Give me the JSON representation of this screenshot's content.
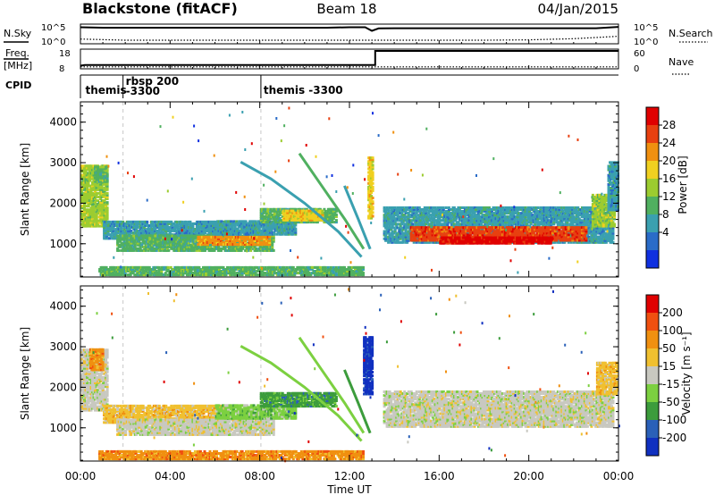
{
  "header": {
    "station": "Blackstone (fitACF)",
    "beam": "Beam 18",
    "date": "04/Jan/2015"
  },
  "chart_data": [
    {
      "type": "line",
      "panel": "noise",
      "left_label": "N.Sky",
      "right_label": "N.Search",
      "left_ticks": [
        "10^5",
        "10^0"
      ],
      "right_ticks": [
        "10^5",
        "10^0"
      ],
      "series": [
        {
          "name": "N.Sky",
          "x": [
            0,
            1,
            2,
            3,
            4,
            5,
            6,
            7,
            8,
            9,
            10,
            11,
            12,
            12.7,
            13.0,
            13.3,
            14,
            15,
            16,
            17,
            18,
            19,
            20,
            21,
            22,
            23,
            24
          ],
          "values": [
            4.2,
            4.1,
            4.1,
            4.1,
            4.1,
            4.1,
            4.1,
            4.1,
            4.1,
            4.1,
            4.1,
            4.1,
            4.2,
            4.2,
            3.3,
            3.9,
            3.95,
            3.95,
            3.95,
            3.95,
            3.95,
            3.95,
            3.95,
            3.95,
            3.95,
            3.95,
            4.3
          ]
        },
        {
          "name": "N.Search",
          "x": [
            0,
            2,
            4,
            6,
            8,
            10,
            12,
            13,
            14,
            16,
            18,
            20,
            22,
            24
          ],
          "values": [
            1.2,
            0.9,
            0.9,
            0.9,
            0.9,
            0.9,
            0.9,
            0.9,
            0.9,
            0.9,
            0.9,
            1.0,
            1.3,
            1.9
          ]
        }
      ]
    },
    {
      "type": "line",
      "panel": "frequency",
      "left_label_top": "Freq.",
      "left_label_bottom": "[MHz]",
      "right_label": "Nave",
      "left_ticks": [
        "18",
        "8"
      ],
      "right_ticks": [
        "60",
        "0"
      ],
      "series": [
        {
          "name": "Freq.",
          "x": [
            0,
            0.2,
            13.15,
            13.15,
            24
          ],
          "values": [
            10.5,
            10.8,
            10.8,
            18,
            18
          ]
        },
        {
          "name": "Nave",
          "x": [
            0,
            24
          ],
          "values": [
            6,
            6
          ]
        }
      ]
    },
    {
      "type": "table",
      "panel": "cpid",
      "label": "CPID",
      "segments": [
        {
          "start": 0.1,
          "line1": "themis",
          "line2": ""
        },
        {
          "start": 1.9,
          "line1": "rbsp 200",
          "line2": "-3300"
        },
        {
          "start": 8.05,
          "line1": "themis  -3300",
          "line2": ""
        }
      ]
    },
    {
      "type": "heatmap",
      "panel": "power",
      "ylabel": "Slant Range [km]",
      "yticks": [
        1000,
        2000,
        3000,
        4000
      ],
      "ylim": [
        180,
        4500
      ],
      "xlim": [
        0,
        24
      ],
      "colorbar": {
        "label": "Power [dB]",
        "ticks": [
          "28",
          "24",
          "20",
          "16",
          "12",
          "8",
          "4"
        ],
        "colors": [
          "#1030e0",
          "#2a6cc8",
          "#3aa0b0",
          "#50b060",
          "#9ccc30",
          "#f0d020",
          "#f09010",
          "#e84010",
          "#e00000"
        ]
      },
      "regions": [
        {
          "x0": 0.0,
          "x1": 1.2,
          "y0": 1400,
          "y1": 2900,
          "level": 4
        },
        {
          "x0": 0.6,
          "x1": 1.2,
          "y0": 2500,
          "y1": 2900,
          "level": 3
        },
        {
          "x0": 0.8,
          "x1": 12.6,
          "y0": 200,
          "y1": 420,
          "level": 3
        },
        {
          "x0": 1.0,
          "x1": 6.5,
          "y0": 1100,
          "y1": 1550,
          "level": 2
        },
        {
          "x0": 1.6,
          "x1": 8.6,
          "y0": 800,
          "y1": 1200,
          "level": 3
        },
        {
          "x0": 5.2,
          "x1": 8.4,
          "y0": 950,
          "y1": 1150,
          "level": 6
        },
        {
          "x0": 6.0,
          "x1": 9.6,
          "y0": 1200,
          "y1": 1550,
          "level": 2
        },
        {
          "x0": 8.0,
          "x1": 11.4,
          "y0": 1500,
          "y1": 1850,
          "level": 3
        },
        {
          "x0": 9.0,
          "x1": 10.8,
          "y0": 1550,
          "y1": 1780,
          "level": 5
        },
        {
          "x0": 12.8,
          "x1": 13.0,
          "y0": 1600,
          "y1": 3100,
          "level": 5
        },
        {
          "x0": 13.5,
          "x1": 23.7,
          "y0": 1000,
          "y1": 1900,
          "level": 2
        },
        {
          "x0": 14.7,
          "x1": 22.5,
          "y0": 1050,
          "y1": 1400,
          "level": 7
        },
        {
          "x0": 16.0,
          "x1": 21.0,
          "y0": 980,
          "y1": 1150,
          "level": 8
        },
        {
          "x0": 22.8,
          "x1": 23.8,
          "y0": 1400,
          "y1": 2200,
          "level": 4
        },
        {
          "x0": 23.5,
          "x1": 23.95,
          "y0": 1800,
          "y1": 3000,
          "level": 2
        }
      ],
      "streaks": [
        {
          "x": [
            7.2,
            8.5,
            10.0,
            11.5,
            12.5
          ],
          "y": [
            3000,
            2600,
            2000,
            1300,
            700
          ],
          "level": 2
        },
        {
          "x": [
            9.8,
            10.8,
            11.8,
            12.6
          ],
          "y": [
            3200,
            2400,
            1600,
            900
          ],
          "level": 3
        },
        {
          "x": [
            11.8,
            12.4,
            12.9
          ],
          "y": [
            2400,
            1600,
            900
          ],
          "level": 2
        }
      ]
    },
    {
      "type": "heatmap",
      "panel": "velocity",
      "ylabel": "Slant Range [km]",
      "yticks": [
        1000,
        2000,
        3000,
        4000
      ],
      "ylim": [
        180,
        4500
      ],
      "xlim": [
        0,
        24
      ],
      "xlabel": "Time UT",
      "xticks": [
        "00:00",
        "04:00",
        "08:00",
        "12:00",
        "16:00",
        "20:00",
        "00:00"
      ],
      "colorbar": {
        "label": "Velocity [m s⁻¹]",
        "ticks": [
          "200",
          "100",
          "50",
          "15",
          "-15",
          "-50",
          "-100",
          "-200"
        ],
        "colors": [
          "#1030c0",
          "#2a60b8",
          "#3c9c3c",
          "#7cd040",
          "#c8c8c0",
          "#f0c030",
          "#f09010",
          "#f05010",
          "#e00000"
        ]
      },
      "regions": [
        {
          "x0": 0.0,
          "x1": 1.2,
          "y0": 1400,
          "y1": 2900,
          "level": 4
        },
        {
          "x0": 0.4,
          "x1": 1.0,
          "y0": 2400,
          "y1": 2900,
          "level": 6
        },
        {
          "x0": 0.8,
          "x1": 12.6,
          "y0": 200,
          "y1": 420,
          "level": 6
        },
        {
          "x0": 1.0,
          "x1": 6.5,
          "y0": 1100,
          "y1": 1550,
          "level": 5
        },
        {
          "x0": 1.6,
          "x1": 8.6,
          "y0": 800,
          "y1": 1200,
          "level": 4
        },
        {
          "x0": 6.0,
          "x1": 9.6,
          "y0": 1200,
          "y1": 1550,
          "level": 3
        },
        {
          "x0": 8.0,
          "x1": 11.4,
          "y0": 1500,
          "y1": 1850,
          "level": 2
        },
        {
          "x0": 12.6,
          "x1": 13.0,
          "y0": 1800,
          "y1": 3200,
          "level": 0
        },
        {
          "x0": 13.5,
          "x1": 23.7,
          "y0": 1000,
          "y1": 1900,
          "level": 4
        },
        {
          "x0": 23.0,
          "x1": 23.95,
          "y0": 1800,
          "y1": 2600,
          "level": 5
        }
      ],
      "streaks": [
        {
          "x": [
            7.2,
            8.5,
            10.0,
            11.5,
            12.5
          ],
          "y": [
            3000,
            2600,
            2000,
            1300,
            700
          ],
          "level": 3
        },
        {
          "x": [
            9.8,
            10.8,
            11.8,
            12.6
          ],
          "y": [
            3200,
            2400,
            1600,
            900
          ],
          "level": 3
        },
        {
          "x": [
            11.8,
            12.4,
            12.9
          ],
          "y": [
            2400,
            1600,
            900
          ],
          "level": 2
        }
      ]
    }
  ]
}
